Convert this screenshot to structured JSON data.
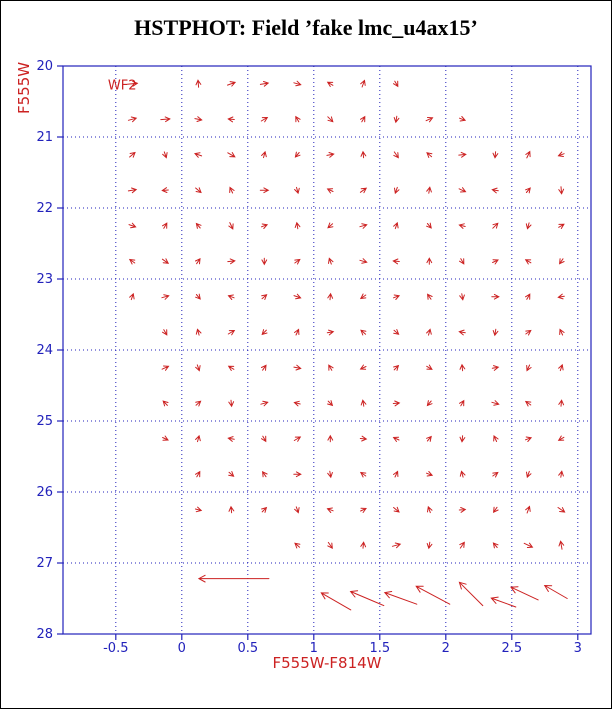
{
  "title": "HSTPHOT: Field ’fake lmc_u4ax15’",
  "chart_data": {
    "type": "scatter",
    "subtype": "vector-field",
    "title": "HSTPHOT: Field ’fake lmc_u4ax15’",
    "xlabel": "F555W-F814W",
    "ylabel": "F555W",
    "field_label": "WF2",
    "xlim": [
      -0.9,
      3.1
    ],
    "ylim": [
      20,
      28
    ],
    "y_axis_inverted": true,
    "xticks": [
      -0.5,
      0,
      0.5,
      1,
      1.5,
      2,
      2.5,
      3
    ],
    "xtick_labels": [
      "-0.5",
      "0",
      "0.5",
      "1",
      "1.5",
      "2",
      "2.5",
      "3"
    ],
    "yticks": [
      20,
      21,
      22,
      23,
      24,
      25,
      26,
      27,
      28
    ],
    "grid": true,
    "grid_style": "dotted",
    "legend": "none",
    "colors": {
      "axis": "#2222bb",
      "vectors": "#cc2222",
      "title": "#000000"
    },
    "grid_rows": [
      {
        "y": 20.25,
        "arrows": [
          [
            -0.375,
            5,
            10
          ],
          [
            0.125,
            95,
            7
          ],
          [
            0.375,
            20,
            8
          ],
          [
            0.625,
            10,
            8
          ],
          [
            0.875,
            -15,
            7
          ],
          [
            1.125,
            150,
            6
          ],
          [
            1.375,
            70,
            7
          ],
          [
            1.625,
            -60,
            6
          ]
        ]
      },
      {
        "y": 20.75,
        "arrows": [
          [
            -0.375,
            15,
            8
          ],
          [
            -0.125,
            5,
            9
          ],
          [
            0.125,
            -10,
            7
          ],
          [
            0.375,
            175,
            6
          ],
          [
            0.625,
            30,
            7
          ],
          [
            0.875,
            120,
            6
          ],
          [
            1.125,
            -45,
            7
          ],
          [
            1.375,
            60,
            6
          ],
          [
            1.625,
            -100,
            6
          ],
          [
            1.875,
            25,
            7
          ],
          [
            2.125,
            -20,
            6
          ]
        ]
      },
      {
        "y": 21.25,
        "arrows": [
          [
            -0.375,
            40,
            7
          ],
          [
            -0.125,
            -70,
            6
          ],
          [
            0.125,
            160,
            7
          ],
          [
            0.375,
            -30,
            8
          ],
          [
            0.625,
            75,
            6
          ],
          [
            0.875,
            -130,
            6
          ],
          [
            1.125,
            10,
            7
          ],
          [
            1.375,
            95,
            6
          ],
          [
            1.625,
            -55,
            7
          ],
          [
            1.875,
            140,
            6
          ],
          [
            2.125,
            5,
            7
          ],
          [
            2.375,
            -95,
            6
          ],
          [
            2.625,
            65,
            7
          ],
          [
            2.875,
            -160,
            6
          ]
        ]
      },
      {
        "y": 21.75,
        "arrows": [
          [
            -0.375,
            10,
            8
          ],
          [
            -0.125,
            185,
            6
          ],
          [
            0.125,
            -40,
            7
          ],
          [
            0.375,
            115,
            6
          ],
          [
            0.625,
            0,
            8
          ],
          [
            0.875,
            -75,
            6
          ],
          [
            1.125,
            155,
            6
          ],
          [
            1.375,
            35,
            7
          ],
          [
            1.625,
            -110,
            6
          ],
          [
            1.875,
            80,
            6
          ],
          [
            2.125,
            -25,
            7
          ],
          [
            2.375,
            170,
            6
          ],
          [
            2.625,
            50,
            6
          ],
          [
            2.875,
            -85,
            7
          ]
        ]
      },
      {
        "y": 22.25,
        "arrows": [
          [
            -0.375,
            -20,
            7
          ],
          [
            -0.125,
            60,
            6
          ],
          [
            0.125,
            130,
            6
          ],
          [
            0.375,
            -65,
            7
          ],
          [
            0.625,
            20,
            6
          ],
          [
            0.875,
            100,
            6
          ],
          [
            1.125,
            -140,
            6
          ],
          [
            1.375,
            15,
            7
          ],
          [
            1.625,
            70,
            6
          ],
          [
            1.875,
            -50,
            6
          ],
          [
            2.125,
            165,
            6
          ],
          [
            2.375,
            45,
            7
          ],
          [
            2.625,
            -105,
            6
          ],
          [
            2.875,
            30,
            6
          ]
        ]
      },
      {
        "y": 22.75,
        "arrows": [
          [
            -0.375,
            145,
            6
          ],
          [
            -0.125,
            -35,
            7
          ],
          [
            0.125,
            55,
            6
          ],
          [
            0.375,
            5,
            7
          ],
          [
            0.625,
            -90,
            6
          ],
          [
            0.875,
            35,
            6
          ],
          [
            1.125,
            110,
            6
          ],
          [
            1.375,
            -15,
            7
          ],
          [
            1.625,
            175,
            6
          ],
          [
            1.875,
            90,
            6
          ],
          [
            2.125,
            -60,
            6
          ],
          [
            2.375,
            25,
            6
          ],
          [
            2.625,
            150,
            6
          ],
          [
            2.875,
            -125,
            6
          ]
        ]
      },
      {
        "y": 23.25,
        "arrows": [
          [
            -0.375,
            70,
            6
          ],
          [
            -0.125,
            15,
            7
          ],
          [
            0.125,
            -50,
            6
          ],
          [
            0.375,
            160,
            6
          ],
          [
            0.625,
            40,
            6
          ],
          [
            0.875,
            -20,
            7
          ],
          [
            1.125,
            85,
            6
          ],
          [
            1.375,
            -145,
            6
          ],
          [
            1.625,
            20,
            6
          ],
          [
            1.875,
            125,
            6
          ],
          [
            2.125,
            -80,
            6
          ],
          [
            2.375,
            0,
            7
          ],
          [
            2.625,
            60,
            6
          ],
          [
            2.875,
            -170,
            6
          ]
        ]
      },
      {
        "y": 23.75,
        "arrows": [
          [
            -0.125,
            -60,
            6
          ],
          [
            0.125,
            105,
            6
          ],
          [
            0.375,
            30,
            7
          ],
          [
            0.625,
            -135,
            6
          ],
          [
            0.875,
            65,
            6
          ],
          [
            1.125,
            10,
            6
          ],
          [
            1.375,
            140,
            6
          ],
          [
            1.625,
            -40,
            6
          ],
          [
            1.875,
            75,
            6
          ],
          [
            2.125,
            170,
            6
          ],
          [
            2.375,
            -100,
            6
          ],
          [
            2.625,
            35,
            6
          ],
          [
            2.875,
            115,
            6
          ]
        ]
      },
      {
        "y": 24.25,
        "arrows": [
          [
            -0.125,
            25,
            7
          ],
          [
            0.125,
            -70,
            6
          ],
          [
            0.375,
            150,
            6
          ],
          [
            0.625,
            55,
            6
          ],
          [
            0.875,
            -10,
            7
          ],
          [
            1.125,
            120,
            6
          ],
          [
            1.375,
            -155,
            6
          ],
          [
            1.625,
            45,
            6
          ],
          [
            1.875,
            -30,
            6
          ],
          [
            2.125,
            95,
            6
          ],
          [
            2.375,
            10,
            6
          ],
          [
            2.625,
            -115,
            6
          ],
          [
            2.875,
            70,
            6
          ]
        ]
      },
      {
        "y": 24.75,
        "arrows": [
          [
            -0.125,
            135,
            6
          ],
          [
            0.125,
            40,
            6
          ],
          [
            0.375,
            -85,
            6
          ],
          [
            0.625,
            15,
            7
          ],
          [
            0.875,
            165,
            6
          ],
          [
            1.125,
            -45,
            6
          ],
          [
            1.375,
            100,
            6
          ],
          [
            1.625,
            5,
            6
          ],
          [
            1.875,
            -130,
            6
          ],
          [
            2.125,
            60,
            6
          ],
          [
            2.375,
            -15,
            7
          ],
          [
            2.625,
            145,
            6
          ],
          [
            2.875,
            85,
            6
          ]
        ]
      },
      {
        "y": 25.25,
        "arrows": [
          [
            -0.125,
            -25,
            6
          ],
          [
            0.125,
            75,
            6
          ],
          [
            0.375,
            170,
            6
          ],
          [
            0.625,
            -60,
            6
          ],
          [
            0.875,
            30,
            7
          ],
          [
            1.125,
            90,
            6
          ],
          [
            1.375,
            -5,
            6
          ],
          [
            1.625,
            155,
            6
          ],
          [
            1.875,
            50,
            6
          ],
          [
            2.125,
            -95,
            6
          ],
          [
            2.375,
            115,
            6
          ],
          [
            2.625,
            20,
            6
          ],
          [
            2.875,
            -150,
            6
          ]
        ]
      },
      {
        "y": 25.75,
        "arrows": [
          [
            0.125,
            60,
            6
          ],
          [
            0.375,
            -40,
            6
          ],
          [
            0.625,
            125,
            6
          ],
          [
            0.875,
            0,
            7
          ],
          [
            1.125,
            -80,
            6
          ],
          [
            1.375,
            145,
            6
          ],
          [
            1.625,
            65,
            6
          ],
          [
            1.875,
            -20,
            6
          ],
          [
            2.125,
            105,
            6
          ],
          [
            2.375,
            35,
            6
          ],
          [
            2.625,
            -110,
            6
          ],
          [
            2.875,
            80,
            6
          ]
        ]
      },
      {
        "y": 26.25,
        "arrows": [
          [
            0.125,
            -15,
            6
          ],
          [
            0.375,
            95,
            6
          ],
          [
            0.625,
            45,
            6
          ],
          [
            0.875,
            -70,
            6
          ],
          [
            1.125,
            160,
            6
          ],
          [
            1.375,
            25,
            6
          ],
          [
            1.625,
            -40,
            7
          ],
          [
            1.875,
            110,
            6
          ],
          [
            2.125,
            5,
            6
          ],
          [
            2.375,
            -125,
            6
          ],
          [
            2.625,
            70,
            7
          ],
          [
            2.875,
            -35,
            8
          ]
        ]
      },
      {
        "y": 26.75,
        "arrows": [
          [
            0.875,
            140,
            6
          ],
          [
            1.125,
            -55,
            7
          ],
          [
            1.375,
            85,
            6
          ],
          [
            1.625,
            15,
            8
          ],
          [
            1.875,
            -100,
            6
          ],
          [
            2.125,
            55,
            7
          ],
          [
            2.375,
            130,
            6
          ],
          [
            2.625,
            -25,
            9
          ],
          [
            2.875,
            100,
            8
          ]
        ]
      }
    ],
    "long_arrows": [
      {
        "x": 0.66,
        "y": 27.22,
        "ang": 180,
        "len": 70
      },
      {
        "x": 1.28,
        "y": 27.66,
        "ang": 150,
        "len": 34
      },
      {
        "x": 1.53,
        "y": 27.6,
        "ang": 157,
        "len": 36
      },
      {
        "x": 1.78,
        "y": 27.58,
        "ang": 160,
        "len": 34
      },
      {
        "x": 2.03,
        "y": 27.58,
        "ang": 152,
        "len": 38
      },
      {
        "x": 2.28,
        "y": 27.6,
        "ang": 135,
        "len": 33
      },
      {
        "x": 2.53,
        "y": 27.62,
        "ang": 160,
        "len": 26
      },
      {
        "x": 2.7,
        "y": 27.52,
        "ang": 155,
        "len": 30
      },
      {
        "x": 2.92,
        "y": 27.5,
        "ang": 150,
        "len": 26
      }
    ]
  }
}
